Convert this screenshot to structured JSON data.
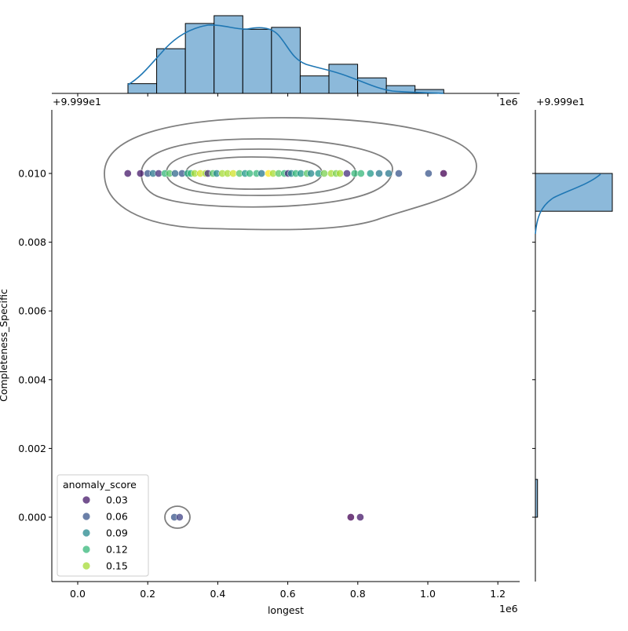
{
  "chart_data": {
    "type": "scatter",
    "subtype": "jointplot",
    "xlabel": "longest",
    "ylabel": "Completeness_Specific",
    "x_offset_text": "1e6",
    "y_offset_text": "+9.999e1",
    "xlim": [
      -0.07,
      1.26
    ],
    "ylim": [
      -0.0019,
      0.0118
    ],
    "x_ticks": [
      "0.0",
      "0.2",
      "0.4",
      "0.6",
      "0.8",
      "1.0",
      "1.2"
    ],
    "y_ticks": [
      "0.000",
      "0.002",
      "0.004",
      "0.006",
      "0.008",
      "0.010"
    ],
    "grid": false,
    "legend": {
      "title": "anomaly_score",
      "placement": "lower-left",
      "entries": [
        {
          "label": "0.03",
          "value": 0.03
        },
        {
          "label": "0.06",
          "value": 0.06
        },
        {
          "label": "0.09",
          "value": 0.09
        },
        {
          "label": "0.12",
          "value": 0.12
        },
        {
          "label": "0.15",
          "value": 0.15
        }
      ]
    },
    "hue_colormap": "viridis",
    "hue_range": [
      0.02,
      0.17
    ],
    "points": [
      {
        "x": 0.143,
        "y": 0.01,
        "score": 0.03
      },
      {
        "x": 0.179,
        "y": 0.01,
        "score": 0.03
      },
      {
        "x": 0.2,
        "y": 0.01,
        "score": 0.06
      },
      {
        "x": 0.215,
        "y": 0.01,
        "score": 0.08
      },
      {
        "x": 0.231,
        "y": 0.01,
        "score": 0.04
      },
      {
        "x": 0.249,
        "y": 0.01,
        "score": 0.12
      },
      {
        "x": 0.262,
        "y": 0.01,
        "score": 0.13
      },
      {
        "x": 0.278,
        "y": 0.01,
        "score": 0.07
      },
      {
        "x": 0.298,
        "y": 0.01,
        "score": 0.06
      },
      {
        "x": 0.314,
        "y": 0.01,
        "score": 0.11
      },
      {
        "x": 0.323,
        "y": 0.01,
        "score": 0.12
      },
      {
        "x": 0.334,
        "y": 0.01,
        "score": 0.15
      },
      {
        "x": 0.35,
        "y": 0.01,
        "score": 0.16
      },
      {
        "x": 0.365,
        "y": 0.01,
        "score": 0.15
      },
      {
        "x": 0.372,
        "y": 0.01,
        "score": 0.04
      },
      {
        "x": 0.386,
        "y": 0.01,
        "score": 0.13
      },
      {
        "x": 0.397,
        "y": 0.01,
        "score": 0.09
      },
      {
        "x": 0.413,
        "y": 0.01,
        "score": 0.15
      },
      {
        "x": 0.428,
        "y": 0.01,
        "score": 0.15
      },
      {
        "x": 0.444,
        "y": 0.01,
        "score": 0.16
      },
      {
        "x": 0.462,
        "y": 0.01,
        "score": 0.13
      },
      {
        "x": 0.478,
        "y": 0.01,
        "score": 0.1
      },
      {
        "x": 0.491,
        "y": 0.01,
        "score": 0.12
      },
      {
        "x": 0.511,
        "y": 0.01,
        "score": 0.12
      },
      {
        "x": 0.525,
        "y": 0.01,
        "score": 0.08
      },
      {
        "x": 0.545,
        "y": 0.01,
        "score": 0.17
      },
      {
        "x": 0.558,
        "y": 0.01,
        "score": 0.15
      },
      {
        "x": 0.574,
        "y": 0.01,
        "score": 0.13
      },
      {
        "x": 0.59,
        "y": 0.01,
        "score": 0.12
      },
      {
        "x": 0.601,
        "y": 0.01,
        "score": 0.04
      },
      {
        "x": 0.61,
        "y": 0.01,
        "score": 0.09
      },
      {
        "x": 0.623,
        "y": 0.01,
        "score": 0.12
      },
      {
        "x": 0.637,
        "y": 0.01,
        "score": 0.1
      },
      {
        "x": 0.655,
        "y": 0.01,
        "score": 0.13
      },
      {
        "x": 0.666,
        "y": 0.01,
        "score": 0.09
      },
      {
        "x": 0.688,
        "y": 0.01,
        "score": 0.1
      },
      {
        "x": 0.704,
        "y": 0.01,
        "score": 0.14
      },
      {
        "x": 0.724,
        "y": 0.01,
        "score": 0.15
      },
      {
        "x": 0.738,
        "y": 0.01,
        "score": 0.14
      },
      {
        "x": 0.749,
        "y": 0.01,
        "score": 0.15
      },
      {
        "x": 0.769,
        "y": 0.01,
        "score": 0.04
      },
      {
        "x": 0.791,
        "y": 0.01,
        "score": 0.12
      },
      {
        "x": 0.809,
        "y": 0.01,
        "score": 0.12
      },
      {
        "x": 0.836,
        "y": 0.01,
        "score": 0.1
      },
      {
        "x": 0.861,
        "y": 0.01,
        "score": 0.08
      },
      {
        "x": 0.888,
        "y": 0.01,
        "score": 0.08
      },
      {
        "x": 0.917,
        "y": 0.01,
        "score": 0.06
      },
      {
        "x": 1.002,
        "y": 0.01,
        "score": 0.06
      },
      {
        "x": 1.045,
        "y": 0.01,
        "score": 0.02
      },
      {
        "x": 0.276,
        "y": 0.0,
        "score": 0.06
      },
      {
        "x": 0.291,
        "y": 0.0,
        "score": 0.05
      },
      {
        "x": 0.78,
        "y": 0.0,
        "score": 0.02
      },
      {
        "x": 0.807,
        "y": 0.0,
        "score": 0.03
      }
    ],
    "marginal_x_histogram": {
      "bin_start": 0.1435,
      "bin_width": 0.082,
      "counts": [
        5,
        23,
        36,
        40,
        33,
        34,
        9,
        15,
        8,
        4,
        2
      ],
      "kde": true
    },
    "marginal_y_histogram": {
      "bins": [
        {
          "from": 0.0,
          "to": 0.0011,
          "count": 5
        },
        {
          "from": 0.0089,
          "to": 0.01,
          "count": 180
        }
      ],
      "kde": true
    },
    "colors": {
      "hist_fill": "#8cb9da",
      "kde_line": "#1f77b4",
      "contour": "#7f7f7f"
    }
  }
}
